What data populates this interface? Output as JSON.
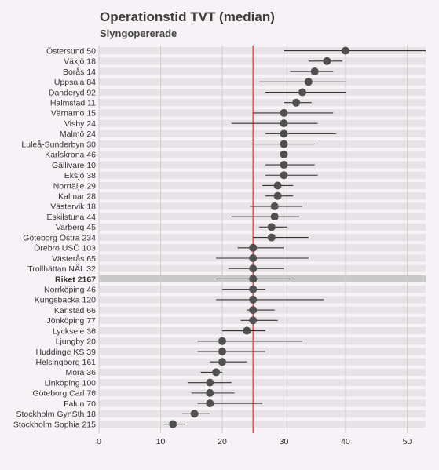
{
  "title": "Operationstid TVT (median)",
  "subtitle": "Slyngopererade",
  "colors": {
    "background": "#f6f2f6",
    "row_band": "#e6e2e6",
    "highlight_band": "#c8c8c8",
    "grid": "#cfcfcf",
    "point": "#505050",
    "error_bar": "#333333",
    "reference_line": "#e8504f"
  },
  "chart_data": {
    "type": "dot-with-error-bars",
    "title": "Operationstid TVT (median)",
    "subtitle": "Slyngopererade",
    "xlim": [
      0,
      53
    ],
    "xticks": [
      0,
      10,
      20,
      30,
      40,
      50
    ],
    "grid": true,
    "reference_value": 25,
    "highlight": "Riket 2167",
    "categories": [
      "Östersund 50",
      "Växjö 18",
      "Borås 14",
      "Uppsala 84",
      "Danderyd 92",
      "Halmstad 11",
      "Värnamo 15",
      "Visby 24",
      "Malmö 24",
      "Luleå-Sunderbyn 30",
      "Karlskrona 46",
      "Gällivare 10",
      "Eksjö 38",
      "Norrtälje 29",
      "Kalmar 28",
      "Västervik 18",
      "Eskilstuna 44",
      "Varberg 45",
      "Göteborg Östra 234",
      "Örebro USÖ 103",
      "Västerås 65",
      "Trollhättan NÄL 32",
      "Riket 2167",
      "Norrköping 46",
      "Kungsbacka 120",
      "Karlstad 66",
      "Jönköping 77",
      "Lycksele 36",
      "Ljungby 20",
      "Huddinge KS 39",
      "Helsingborg 161",
      "Mora 36",
      "Linköping 100",
      "Göteborg Carl 76",
      "Falun 70",
      "Stockholm GynSth 18",
      "Stockholm Sophia 215"
    ],
    "values": [
      40,
      37,
      35,
      34,
      33,
      32,
      30,
      30,
      30,
      30,
      30,
      30,
      30,
      29,
      29,
      28.5,
      28.5,
      28,
      28,
      25,
      25,
      25,
      25,
      25,
      25,
      25,
      25,
      24,
      20,
      20,
      20,
      19,
      18,
      18,
      18,
      15.5,
      12
    ],
    "lower": [
      30,
      34,
      31,
      26,
      27,
      30,
      25,
      21.5,
      27,
      25,
      30,
      27,
      27,
      26.5,
      27,
      24.5,
      21.5,
      26,
      25,
      22.5,
      19,
      21,
      19,
      20,
      19,
      24,
      23,
      20,
      16,
      16,
      18,
      16.5,
      14.5,
      15,
      16,
      13.5,
      10.5
    ],
    "upper": [
      53,
      39.5,
      38,
      40,
      40,
      34.5,
      38,
      35.5,
      38.5,
      35,
      30,
      35,
      35.5,
      31.5,
      31.5,
      33,
      32.5,
      30.5,
      34,
      30,
      34,
      30,
      31,
      27,
      36.5,
      28.5,
      29,
      27,
      33,
      27,
      24,
      20,
      21.5,
      22,
      26.5,
      18,
      14
    ]
  }
}
